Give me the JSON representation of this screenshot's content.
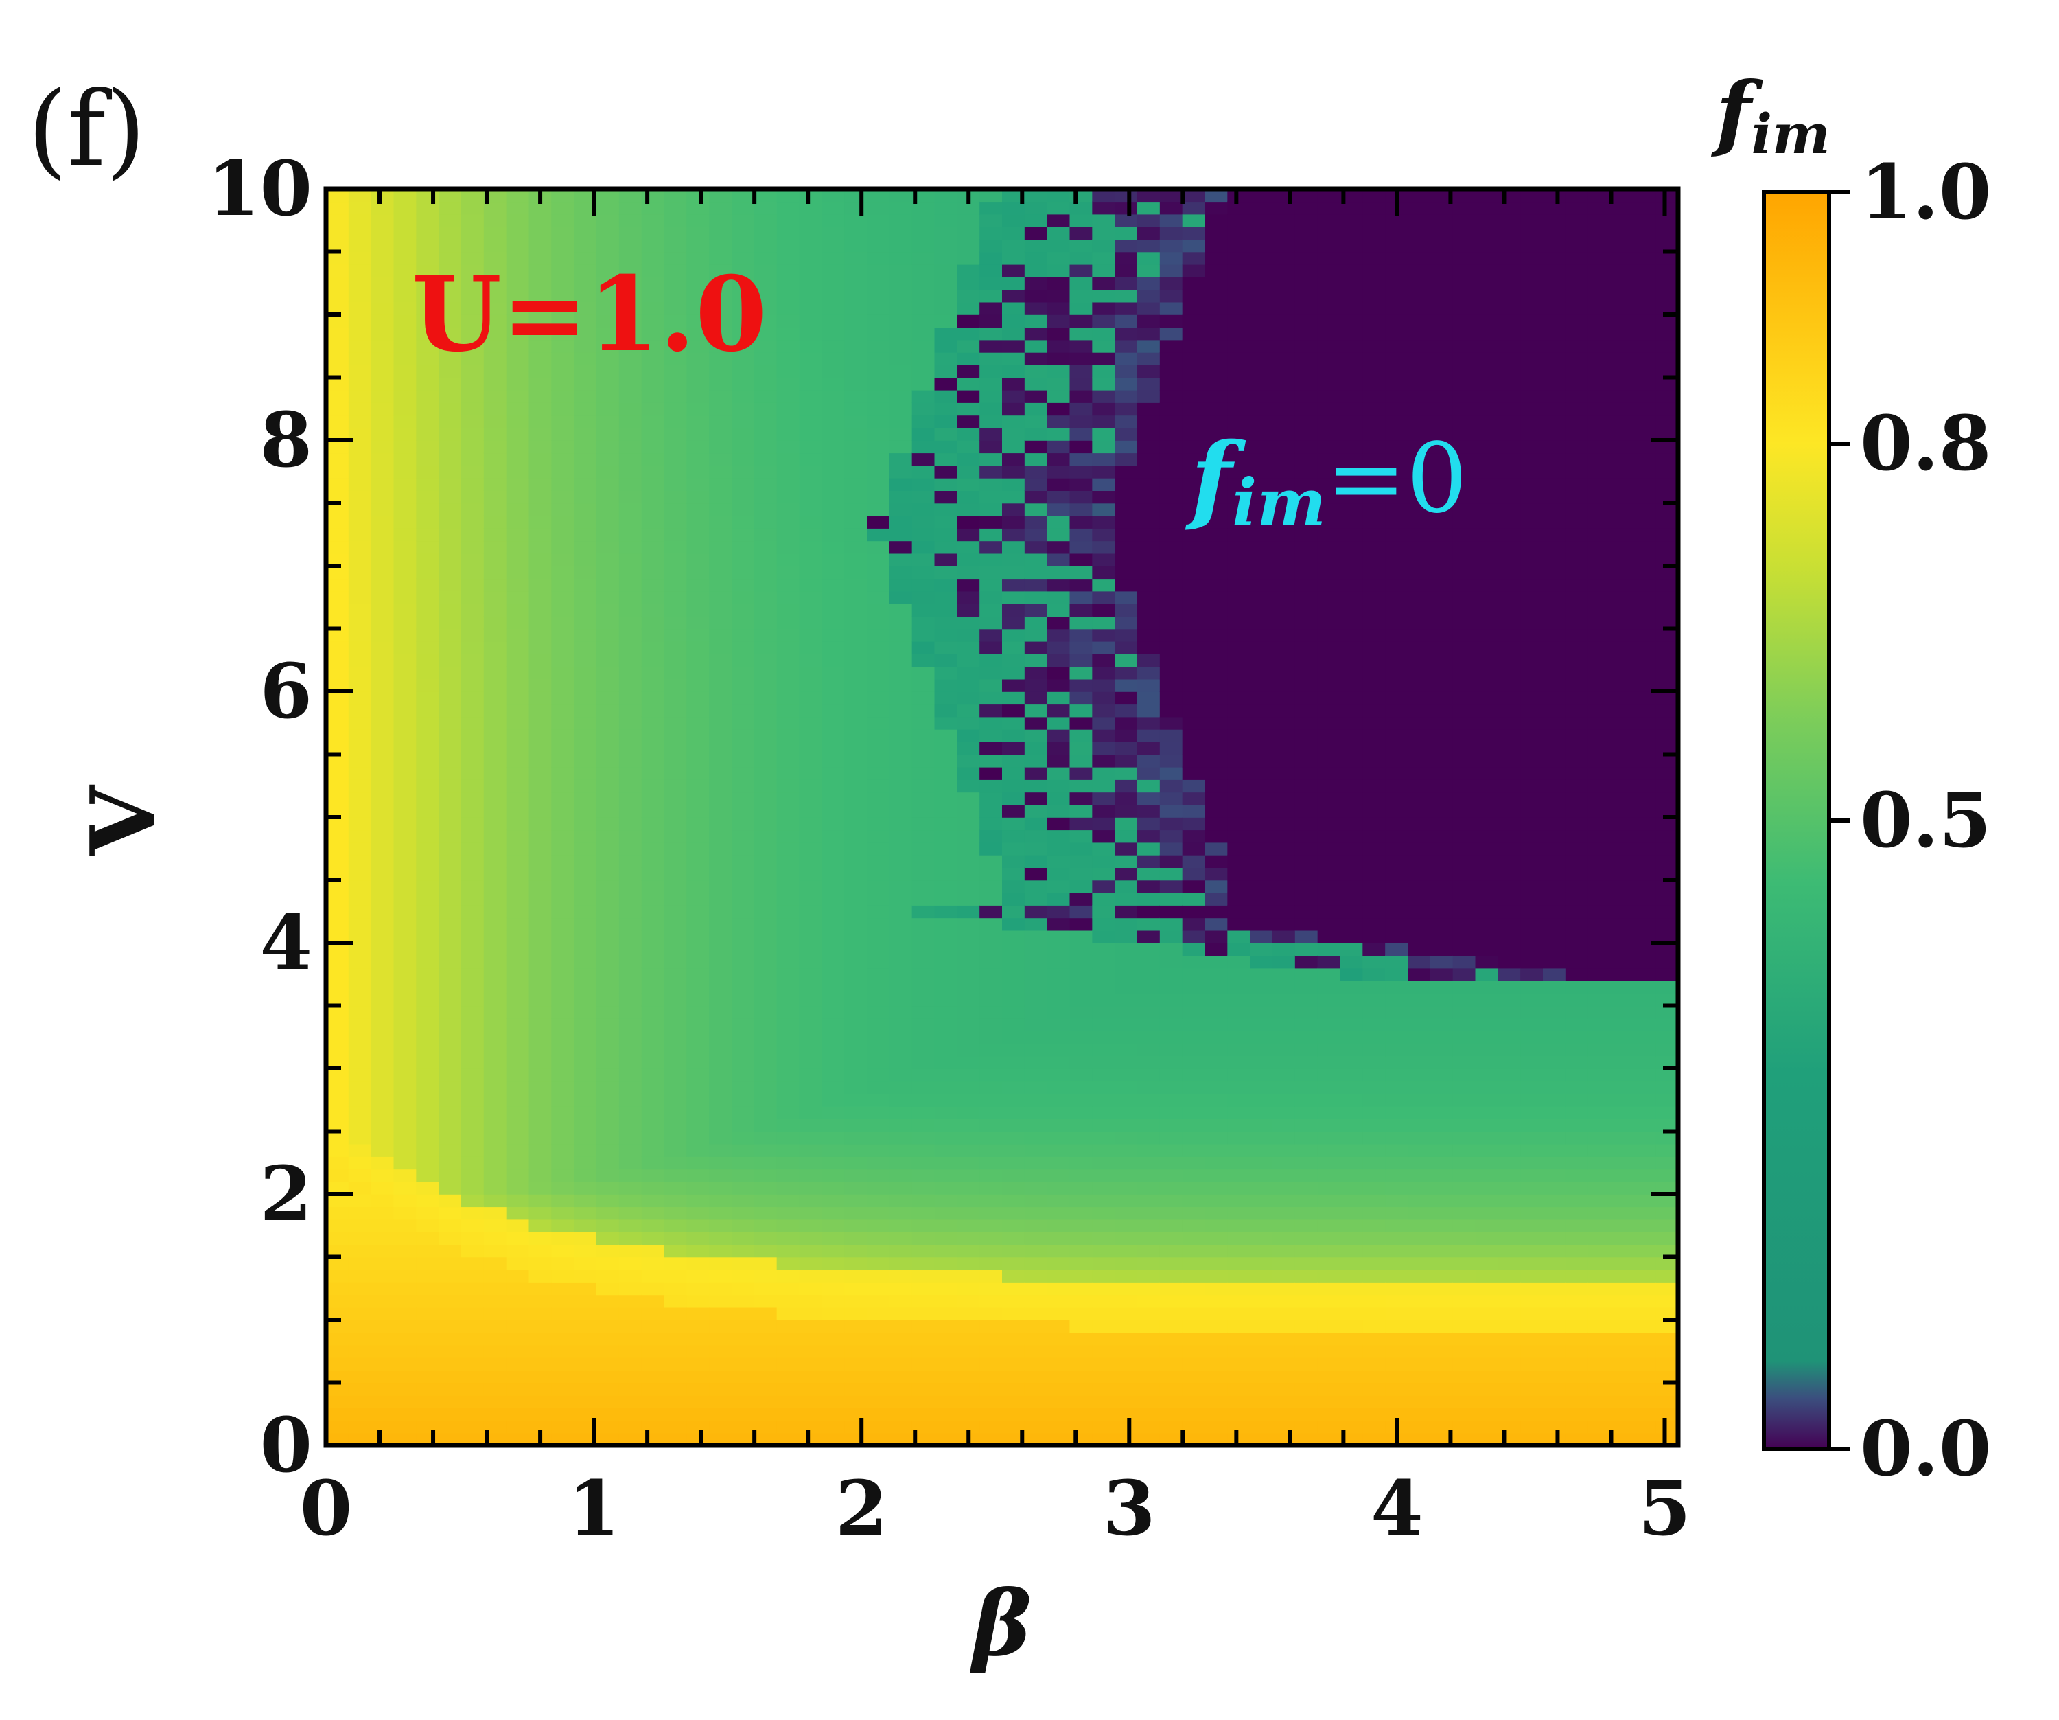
{
  "panel_label": "(f)",
  "annotations": {
    "u_value": {
      "text": "U=1.0",
      "color": "#ee1111"
    },
    "fim_zero": {
      "symbol": "f",
      "subscript": "im",
      "suffix": "=0",
      "color": "#22ddee"
    }
  },
  "colorbar": {
    "title_symbol": "f",
    "title_subscript": "im",
    "ticks": [
      {
        "value": 1.0,
        "label": "1.0"
      },
      {
        "value": 0.8,
        "label": "0.8"
      },
      {
        "value": 0.5,
        "label": "0.5"
      },
      {
        "value": 0.0,
        "label": "0.0"
      }
    ],
    "colormap": "viridis-like (purple 0 → teal → green → yellow → orange 1)"
  },
  "chart_data": {
    "type": "heatmap",
    "title": "",
    "xlabel": "β",
    "ylabel": "V",
    "xlim": [
      0,
      5.05
    ],
    "ylim": [
      0,
      10
    ],
    "xticks": [
      {
        "value": 0,
        "label": "0"
      },
      {
        "value": 1,
        "label": "1"
      },
      {
        "value": 2,
        "label": "2"
      },
      {
        "value": 3,
        "label": "3"
      },
      {
        "value": 4,
        "label": "4"
      },
      {
        "value": 5,
        "label": "5"
      }
    ],
    "yticks": [
      {
        "value": 0,
        "label": "0"
      },
      {
        "value": 2,
        "label": "2"
      },
      {
        "value": 4,
        "label": "4"
      },
      {
        "value": 6,
        "label": "6"
      },
      {
        "value": 8,
        "label": "8"
      },
      {
        "value": 10,
        "label": "10"
      }
    ],
    "color_range": [
      0,
      1
    ],
    "grid": false,
    "regions": [
      {
        "name": "f_im ≈ 1 (orange)",
        "beta_range": [
          0,
          5.05
        ],
        "V_range": [
          0,
          2.0
        ],
        "value": 0.95
      },
      {
        "name": "yellow ridge",
        "description": "ridge of f_im ≈ 0.8 along V≈2.2 for β>1.8 and along β≈0.3–0.9 for V>2",
        "value": 0.8
      },
      {
        "name": "green plateau",
        "description": "f_im ≈ 0.35 between the ridge and the f_im=0 boundary",
        "value": 0.35
      },
      {
        "name": "f_im = 0",
        "description": "purple region for β ≳ 2.4–3 and V ≳ 4 (extends to β≈4 at V≈4.2)",
        "value": 0.0
      }
    ]
  }
}
